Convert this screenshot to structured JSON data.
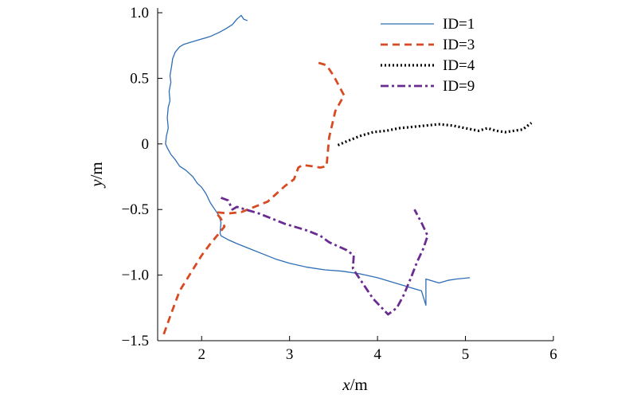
{
  "chart_data": {
    "type": "line",
    "title": "",
    "xlabel": {
      "var": "x",
      "unit": "/m"
    },
    "ylabel": {
      "var": "y",
      "unit": "/m"
    },
    "xlim": [
      1.5,
      6
    ],
    "ylim": [
      -1.5,
      1.0
    ],
    "xticks": [
      {
        "value": 2,
        "label": "2"
      },
      {
        "value": 3,
        "label": "3"
      },
      {
        "value": 4,
        "label": "4"
      },
      {
        "value": 5,
        "label": "5"
      },
      {
        "value": 6,
        "label": "6"
      }
    ],
    "yticks": [
      {
        "value": 1.0,
        "label": "1.0"
      },
      {
        "value": 0.5,
        "label": "0.5"
      },
      {
        "value": 0,
        "label": "0"
      },
      {
        "value": -0.5,
        "label": "−0.5"
      },
      {
        "value": -1.0,
        "label": "−1.0"
      },
      {
        "value": -1.5,
        "label": "−1.5"
      }
    ],
    "grid": false,
    "legend_position": "top-right",
    "series": [
      {
        "name": "ID=1",
        "color": "#2e6db4",
        "style": "solid",
        "points": [
          [
            2.52,
            0.94
          ],
          [
            2.48,
            0.95
          ],
          [
            2.45,
            0.98
          ],
          [
            2.4,
            0.95
          ],
          [
            2.35,
            0.91
          ],
          [
            2.28,
            0.88
          ],
          [
            2.2,
            0.85
          ],
          [
            2.1,
            0.82
          ],
          [
            2.0,
            0.8
          ],
          [
            1.9,
            0.78
          ],
          [
            1.8,
            0.76
          ],
          [
            1.75,
            0.74
          ],
          [
            1.7,
            0.7
          ],
          [
            1.67,
            0.65
          ],
          [
            1.66,
            0.6
          ],
          [
            1.64,
            0.52
          ],
          [
            1.65,
            0.47
          ],
          [
            1.63,
            0.4
          ],
          [
            1.64,
            0.33
          ],
          [
            1.62,
            0.28
          ],
          [
            1.61,
            0.2
          ],
          [
            1.62,
            0.12
          ],
          [
            1.6,
            0.06
          ],
          [
            1.59,
            0.0
          ],
          [
            1.61,
            -0.03
          ],
          [
            1.65,
            -0.08
          ],
          [
            1.7,
            -0.12
          ],
          [
            1.75,
            -0.17
          ],
          [
            1.82,
            -0.2
          ],
          [
            1.9,
            -0.25
          ],
          [
            1.95,
            -0.3
          ],
          [
            2.0,
            -0.33
          ],
          [
            2.05,
            -0.38
          ],
          [
            2.1,
            -0.45
          ],
          [
            2.15,
            -0.5
          ],
          [
            2.2,
            -0.55
          ],
          [
            2.22,
            -0.6
          ],
          [
            2.21,
            -0.68
          ],
          [
            2.22,
            -0.7
          ],
          [
            2.3,
            -0.73
          ],
          [
            2.4,
            -0.76
          ],
          [
            2.55,
            -0.8
          ],
          [
            2.7,
            -0.84
          ],
          [
            2.85,
            -0.88
          ],
          [
            3.0,
            -0.91
          ],
          [
            3.2,
            -0.94
          ],
          [
            3.4,
            -0.96
          ],
          [
            3.6,
            -0.97
          ],
          [
            3.8,
            -0.99
          ],
          [
            4.0,
            -1.02
          ],
          [
            4.2,
            -1.06
          ],
          [
            4.4,
            -1.1
          ],
          [
            4.5,
            -1.12
          ],
          [
            4.55,
            -1.23
          ],
          [
            4.55,
            -1.03
          ],
          [
            4.7,
            -1.06
          ],
          [
            4.8,
            -1.04
          ],
          [
            4.9,
            -1.03
          ],
          [
            5.05,
            -1.02
          ]
        ]
      },
      {
        "name": "ID=3",
        "color": "#d64b22",
        "style": "dashed",
        "points": [
          [
            1.57,
            -1.45
          ],
          [
            1.65,
            -1.3
          ],
          [
            1.75,
            -1.12
          ],
          [
            1.88,
            -0.98
          ],
          [
            2.0,
            -0.85
          ],
          [
            2.1,
            -0.76
          ],
          [
            2.2,
            -0.68
          ],
          [
            2.26,
            -0.63
          ],
          [
            2.22,
            -0.57
          ],
          [
            2.16,
            -0.52
          ],
          [
            2.3,
            -0.53
          ],
          [
            2.45,
            -0.52
          ],
          [
            2.6,
            -0.48
          ],
          [
            2.75,
            -0.44
          ],
          [
            2.85,
            -0.38
          ],
          [
            2.95,
            -0.32
          ],
          [
            3.05,
            -0.27
          ],
          [
            3.1,
            -0.18
          ],
          [
            3.15,
            -0.16
          ],
          [
            3.25,
            -0.17
          ],
          [
            3.35,
            -0.18
          ],
          [
            3.42,
            -0.17
          ],
          [
            3.45,
            0.05
          ],
          [
            3.52,
            0.25
          ],
          [
            3.62,
            0.37
          ],
          [
            3.5,
            0.52
          ],
          [
            3.42,
            0.6
          ],
          [
            3.32,
            0.62
          ]
        ]
      },
      {
        "name": "ID=4",
        "color": "#000000",
        "style": "dotted",
        "points": [
          [
            3.55,
            -0.01
          ],
          [
            3.65,
            0.02
          ],
          [
            3.8,
            0.06
          ],
          [
            3.95,
            0.09
          ],
          [
            4.1,
            0.1
          ],
          [
            4.25,
            0.12
          ],
          [
            4.4,
            0.13
          ],
          [
            4.55,
            0.14
          ],
          [
            4.7,
            0.15
          ],
          [
            4.85,
            0.14
          ],
          [
            5.0,
            0.12
          ],
          [
            5.15,
            0.1
          ],
          [
            5.25,
            0.12
          ],
          [
            5.35,
            0.1
          ],
          [
            5.45,
            0.09
          ],
          [
            5.55,
            0.1
          ],
          [
            5.65,
            0.11
          ],
          [
            5.75,
            0.16
          ]
        ]
      },
      {
        "name": "ID=9",
        "color": "#6b2c91",
        "style": "dashdot",
        "points": [
          [
            2.22,
            -0.41
          ],
          [
            2.3,
            -0.43
          ],
          [
            2.35,
            -0.5
          ],
          [
            2.4,
            -0.48
          ],
          [
            2.5,
            -0.5
          ],
          [
            2.65,
            -0.53
          ],
          [
            2.8,
            -0.57
          ],
          [
            2.95,
            -0.61
          ],
          [
            3.05,
            -0.63
          ],
          [
            3.2,
            -0.66
          ],
          [
            3.35,
            -0.7
          ],
          [
            3.45,
            -0.75
          ],
          [
            3.55,
            -0.78
          ],
          [
            3.65,
            -0.81
          ],
          [
            3.73,
            -0.85
          ],
          [
            3.72,
            -0.95
          ],
          [
            3.85,
            -1.08
          ],
          [
            3.95,
            -1.18
          ],
          [
            4.05,
            -1.25
          ],
          [
            4.12,
            -1.3
          ],
          [
            4.22,
            -1.25
          ],
          [
            4.3,
            -1.15
          ],
          [
            4.38,
            -1.02
          ],
          [
            4.45,
            -0.9
          ],
          [
            4.52,
            -0.8
          ],
          [
            4.57,
            -0.7
          ],
          [
            4.5,
            -0.6
          ],
          [
            4.42,
            -0.5
          ]
        ]
      }
    ]
  }
}
